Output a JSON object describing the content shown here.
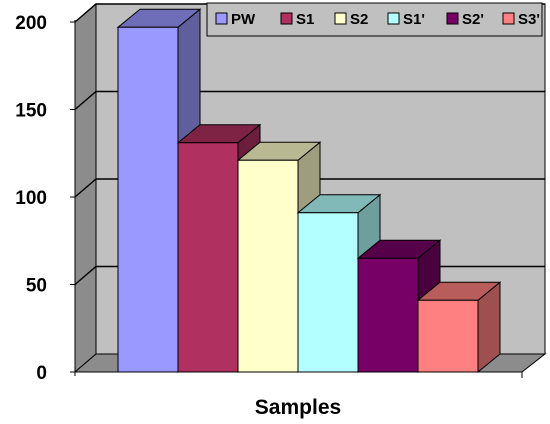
{
  "chart_data": {
    "type": "bar",
    "categories": [
      "PW",
      "S1",
      "S2",
      "S1'",
      "S2'",
      "S3'"
    ],
    "values": [
      197,
      131,
      121,
      91,
      65,
      41
    ],
    "colors": [
      "#9999ff",
      "#b03060",
      "#ffffcc",
      "#b3ffff",
      "#770066",
      "#ff8080"
    ],
    "xlabel": "Samples",
    "ylabel": "",
    "ylim": [
      0,
      200
    ],
    "yticks": [
      0,
      50,
      100,
      150,
      200
    ],
    "grid": true,
    "legend": "top-right",
    "style": "3d"
  }
}
